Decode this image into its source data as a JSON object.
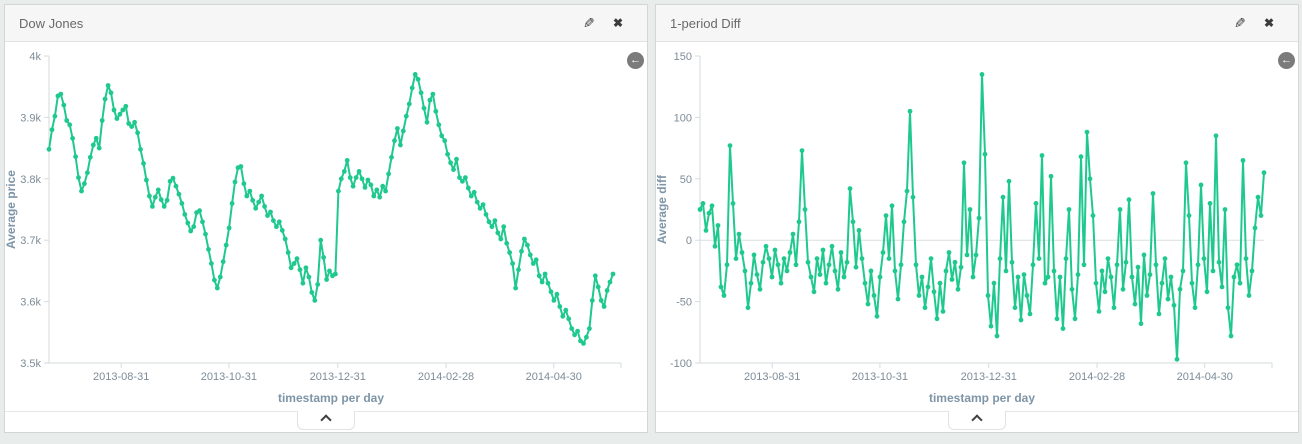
{
  "page": {
    "background": "#e8eceb",
    "accent_green": "#1fc98e"
  },
  "icons": {
    "edit": "✎",
    "close": "✖",
    "back": "←"
  },
  "panels": [
    {
      "title": "Dow Jones"
    },
    {
      "title": "1-period Diff"
    }
  ],
  "chart_data": [
    {
      "type": "line",
      "title": "Dow Jones",
      "xlabel": "timestamp per day",
      "ylabel": "Average price",
      "ylim": [
        3500,
        4000
      ],
      "grid": false,
      "zero_line": false,
      "line_color": "#1fc98e",
      "y_ticks": [
        {
          "v": 4000,
          "label": "4k"
        },
        {
          "v": 3900,
          "label": "3.9k"
        },
        {
          "v": 3800,
          "label": "3.8k"
        },
        {
          "v": 3700,
          "label": "3.7k"
        },
        {
          "v": 3600,
          "label": "3.6k"
        },
        {
          "v": 3500,
          "label": "3.5k"
        }
      ],
      "x_ticks": [
        {
          "f": 0.128,
          "label": "2013-08-31"
        },
        {
          "f": 0.319,
          "label": "2013-10-31"
        },
        {
          "f": 0.512,
          "label": "2013-12-31"
        },
        {
          "f": 0.704,
          "label": "2014-02-28"
        },
        {
          "f": 0.895,
          "label": "2014-04-30"
        }
      ],
      "values": [
        3848,
        3880,
        3902,
        3935,
        3938,
        3920,
        3895,
        3888,
        3866,
        3836,
        3802,
        3780,
        3792,
        3810,
        3835,
        3855,
        3866,
        3850,
        3895,
        3930,
        3952,
        3940,
        3912,
        3898,
        3905,
        3912,
        3918,
        3890,
        3885,
        3892,
        3875,
        3848,
        3825,
        3798,
        3772,
        3755,
        3770,
        3782,
        3766,
        3755,
        3765,
        3796,
        3801,
        3788,
        3775,
        3760,
        3742,
        3728,
        3715,
        3722,
        3745,
        3748,
        3730,
        3710,
        3685,
        3662,
        3635,
        3622,
        3640,
        3665,
        3692,
        3720,
        3760,
        3795,
        3818,
        3820,
        3792,
        3772,
        3780,
        3765,
        3752,
        3762,
        3772,
        3755,
        3740,
        3746,
        3732,
        3722,
        3730,
        3716,
        3702,
        3680,
        3655,
        3662,
        3670,
        3652,
        3630,
        3655,
        3640,
        3615,
        3602,
        3628,
        3700,
        3672,
        3636,
        3650,
        3642,
        3645,
        3780,
        3800,
        3812,
        3830,
        3802,
        3788,
        3802,
        3812,
        3800,
        3786,
        3798,
        3790,
        3772,
        3782,
        3770,
        3788,
        3780,
        3808,
        3835,
        3862,
        3882,
        3855,
        3878,
        3902,
        3922,
        3948,
        3970,
        3962,
        3940,
        3915,
        3892,
        3928,
        3938,
        3910,
        3888,
        3870,
        3862,
        3840,
        3826,
        3815,
        3832,
        3802,
        3796,
        3802,
        3785,
        3772,
        3778,
        3762,
        3752,
        3758,
        3742,
        3730,
        3722,
        3732,
        3712,
        3702,
        3722,
        3695,
        3680,
        3662,
        3622,
        3652,
        3682,
        3702,
        3692,
        3676,
        3662,
        3668,
        3642,
        3632,
        3645,
        3630,
        3616,
        3602,
        3612,
        3592,
        3576,
        3586,
        3572,
        3556,
        3546,
        3552,
        3536,
        3532,
        3542,
        3556,
        3602,
        3642,
        3624,
        3602,
        3592,
        3618,
        3632,
        3645
      ]
    },
    {
      "type": "line",
      "title": "1-period Diff",
      "xlabel": "timestamp per day",
      "ylabel": "Average diff",
      "ylim": [
        -100,
        150
      ],
      "grid": false,
      "zero_line": true,
      "line_color": "#1fc98e",
      "y_ticks": [
        {
          "v": 150,
          "label": "150"
        },
        {
          "v": 100,
          "label": "100"
        },
        {
          "v": 50,
          "label": "50"
        },
        {
          "v": 0,
          "label": "0"
        },
        {
          "v": -50,
          "label": "-50"
        },
        {
          "v": -100,
          "label": "-100"
        }
      ],
      "x_ticks": [
        {
          "f": 0.128,
          "label": "2013-08-31"
        },
        {
          "f": 0.319,
          "label": "2013-10-31"
        },
        {
          "f": 0.512,
          "label": "2013-12-31"
        },
        {
          "f": 0.704,
          "label": "2014-02-28"
        },
        {
          "f": 0.895,
          "label": "2014-04-30"
        }
      ],
      "values": [
        25,
        30,
        8,
        22,
        28,
        -5,
        12,
        -38,
        -45,
        -20,
        77,
        30,
        -15,
        5,
        -10,
        -25,
        -55,
        -35,
        -12,
        -28,
        -40,
        -18,
        -5,
        -15,
        -30,
        -8,
        -20,
        -35,
        -15,
        -25,
        -10,
        5,
        -20,
        15,
        73,
        25,
        -18,
        -30,
        -42,
        -15,
        -28,
        -8,
        -35,
        -20,
        -5,
        -25,
        -40,
        -10,
        -30,
        -18,
        42,
        15,
        -22,
        8,
        -15,
        -35,
        -52,
        -25,
        -45,
        -62,
        -30,
        -10,
        20,
        -15,
        28,
        -25,
        -48,
        -20,
        15,
        40,
        105,
        35,
        -20,
        -45,
        -30,
        -55,
        -38,
        -15,
        -42,
        -64,
        -35,
        -58,
        -25,
        -10,
        -32,
        -18,
        -40,
        -22,
        63,
        -12,
        25,
        -30,
        -12,
        18,
        135,
        70,
        -45,
        -70,
        -35,
        -78,
        -15,
        35,
        -25,
        48,
        -18,
        -55,
        -30,
        -65,
        -28,
        -45,
        -60,
        -20,
        30,
        -15,
        69,
        -35,
        -30,
        52,
        -25,
        -64,
        -30,
        -72,
        -15,
        25,
        -40,
        -64,
        -28,
        68,
        -20,
        88,
        50,
        20,
        -35,
        -58,
        -25,
        -42,
        -15,
        -30,
        -55,
        -20,
        25,
        -40,
        -18,
        33,
        -30,
        -52,
        -22,
        -68,
        -12,
        -45,
        -28,
        38,
        -20,
        -60,
        -35,
        -15,
        -48,
        -30,
        -53,
        -97,
        -40,
        -25,
        63,
        20,
        -35,
        -55,
        -20,
        45,
        -15,
        -42,
        30,
        -25,
        85,
        -18,
        -38,
        25,
        -55,
        -78,
        -30,
        -20,
        -35,
        65,
        -15,
        -45,
        -25,
        10,
        35,
        20,
        55
      ]
    }
  ]
}
